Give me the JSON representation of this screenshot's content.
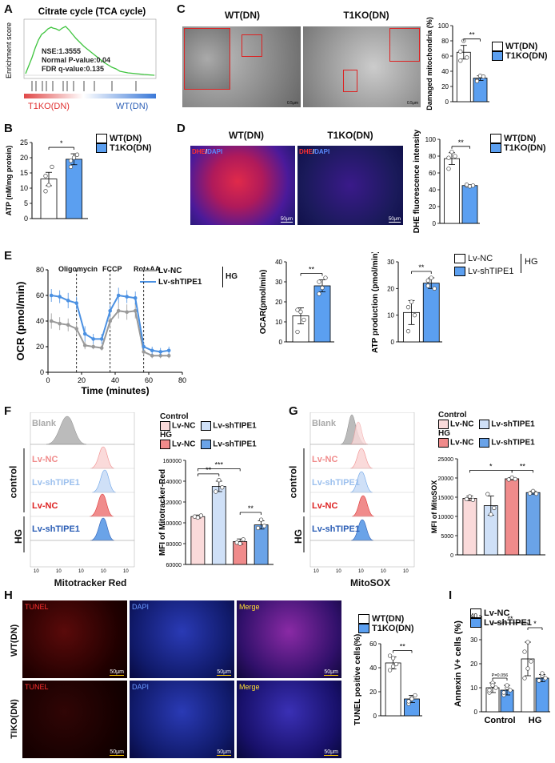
{
  "panel_letters": [
    "A",
    "B",
    "C",
    "D",
    "E",
    "F",
    "G",
    "H",
    "I"
  ],
  "A": {
    "title": "Citrate cycle (TCA cycle)",
    "ylabel": "Enrichment score",
    "stats": [
      "NSE:1.3555",
      "Normal P-value:0.04",
      "FDR q-value:0.135"
    ],
    "left_label": "T1KO(DN)",
    "right_label": "WT(DN)"
  },
  "legend_wt_t1ko": {
    "wt": "WT(DN)",
    "ko": "T1KO(DN)"
  },
  "legend_lv": {
    "nc": "Lv-NC",
    "sh": "Lv-shTIPE1",
    "hg": "HG",
    "control": "Control"
  },
  "C": {
    "col_titles": [
      "WT(DN)",
      "T1KO(DN)"
    ],
    "scale": "0.5μm"
  },
  "D": {
    "col_titles": [
      "WT(DN)",
      "T1KO(DN)"
    ],
    "stain_red": "DHE",
    "stain_sep": "/",
    "stain_blue": "DAPI",
    "scale": "50μm"
  },
  "E": {
    "markers": [
      "Oligomycin",
      "FCCP",
      "Rot+AA"
    ]
  },
  "F": {
    "row_labels": [
      "Blank",
      "Lv-NC",
      "Lv-shTIPE1",
      "Lv-NC",
      "Lv-shTIPE1"
    ],
    "group_labels": [
      "control",
      "HG"
    ],
    "xlabel": "Mitotracker Red"
  },
  "G": {
    "row_labels": [
      "Blank",
      "Lv-NC",
      "Lv-shTIPE1",
      "Lv-NC",
      "Lv-shTIPE1"
    ],
    "group_labels": [
      "control",
      "HG"
    ],
    "xlabel": "MitoSOX"
  },
  "H": {
    "cols": [
      "TUNEL",
      "DAPI",
      "Merge"
    ],
    "rows": [
      "WT(DN)",
      "TIKO(DN)"
    ],
    "scale": "50μm"
  },
  "colors": {
    "wt": "#ffffff",
    "ko": "#5b9ff0",
    "nc_ctrl": "#fadada",
    "sh_ctrl": "#cfe0f7",
    "nc_hg": "#f08b8b",
    "sh_hg": "#6aa3e8",
    "line_nc": "#999999",
    "line_sh": "#4a90e2",
    "gsea": "#3ec43e"
  },
  "chart_data": [
    {
      "id": "B",
      "type": "bar",
      "categories": [
        "WT(DN)",
        "T1KO(DN)"
      ],
      "values": [
        13,
        19.5
      ],
      "errors": [
        2.2,
        1.8
      ],
      "ylabel": "ATP (nM/mg protein)",
      "ylim": [
        0,
        25
      ],
      "yticks": [
        0,
        5,
        10,
        15,
        20,
        25
      ],
      "points": [
        [
          9,
          11,
          17,
          14
        ],
        [
          17,
          20,
          21,
          19
        ]
      ],
      "sig": [
        {
          "a": 0,
          "b": 1,
          "label": "*"
        }
      ]
    },
    {
      "id": "C",
      "type": "bar",
      "categories": [
        "WT(DN)",
        "T1KO(DN)"
      ],
      "values": [
        65,
        31
      ],
      "errors": [
        9,
        3
      ],
      "ylabel": "Damaged mitochondria (%)",
      "ylim": [
        0,
        100
      ],
      "yticks": [
        0,
        20,
        40,
        60,
        80,
        100
      ],
      "points": [
        [
          54,
          80,
          58,
          66
        ],
        [
          28,
          34,
          33,
          27
        ]
      ],
      "sig": [
        {
          "a": 0,
          "b": 1,
          "label": "**"
        }
      ]
    },
    {
      "id": "D",
      "type": "bar",
      "categories": [
        "WT(DN)",
        "T1KO(DN)"
      ],
      "values": [
        77,
        45
      ],
      "errors": [
        7,
        1
      ],
      "ylabel": "DHE fluorescence intensity",
      "ylim": [
        0,
        100
      ],
      "yticks": [
        0,
        20,
        40,
        60,
        80,
        100
      ],
      "points": [
        [
          65,
          85,
          80,
          78
        ],
        [
          45,
          44,
          45,
          46
        ]
      ],
      "sig": [
        {
          "a": 0,
          "b": 1,
          "label": "**"
        }
      ]
    },
    {
      "id": "E1",
      "type": "line",
      "title": "",
      "xlabel": "Time (minutes)",
      "ylabel": "OCR (pmol/min)",
      "xlim": [
        0,
        80
      ],
      "ylim": [
        0,
        80
      ],
      "xticks": [
        0,
        20,
        40,
        60,
        80
      ],
      "yticks": [
        0,
        20,
        40,
        60,
        80
      ],
      "x": [
        2,
        7,
        12,
        17,
        22,
        27,
        32,
        37,
        42,
        47,
        52,
        57,
        62,
        67,
        72
      ],
      "series": [
        {
          "name": "Lv-NC",
          "values": [
            40,
            38,
            37,
            34,
            21,
            20,
            19,
            40,
            48,
            47,
            48,
            16,
            13,
            13,
            13
          ],
          "errors": [
            6,
            5,
            5,
            5,
            3,
            2,
            2,
            6,
            6,
            6,
            6,
            3,
            2,
            2,
            2
          ]
        },
        {
          "name": "Lv-shTIPE1",
          "values": [
            60,
            59,
            56,
            54,
            30,
            26,
            26,
            48,
            60,
            59,
            58,
            20,
            17,
            16,
            17
          ],
          "errors": [
            5,
            5,
            6,
            5,
            6,
            4,
            4,
            5,
            6,
            5,
            5,
            3,
            3,
            3,
            3
          ]
        }
      ]
    },
    {
      "id": "E2",
      "type": "bar",
      "categories": [
        "Lv-NC",
        "Lv-shTIPE1"
      ],
      "values": [
        13,
        28
      ],
      "errors": [
        4,
        3
      ],
      "ylabel": "OCAR(pmol/min)",
      "ylim": [
        0,
        40
      ],
      "yticks": [
        0,
        10,
        20,
        30,
        40
      ],
      "points": [
        [
          5,
          15,
          11,
          16
        ],
        [
          24,
          27,
          32,
          30
        ]
      ],
      "sig": [
        {
          "a": 0,
          "b": 1,
          "label": "**"
        }
      ]
    },
    {
      "id": "E3",
      "type": "bar",
      "categories": [
        "Lv-NC",
        "Lv-shTIPE1"
      ],
      "values": [
        11,
        22
      ],
      "errors": [
        4.5,
        2
      ],
      "ylabel": "ATP production (pmol/min)",
      "ylim": [
        0,
        30
      ],
      "yticks": [
        0,
        10,
        20,
        30
      ],
      "points": [
        [
          4,
          15,
          10,
          13
        ],
        [
          21,
          24,
          20,
          23
        ]
      ],
      "sig": [
        {
          "a": 0,
          "b": 1,
          "label": "**"
        }
      ]
    },
    {
      "id": "F",
      "type": "bar",
      "categories": [
        "Lv-NC",
        "Lv-shTIPE1",
        "Lv-NC",
        "Lv-shTIPE1"
      ],
      "groups": [
        "Control",
        "Control",
        "HG",
        "HG"
      ],
      "values": [
        106000,
        135000,
        82000,
        98000
      ],
      "errors": [
        1500,
        5000,
        2500,
        4000
      ],
      "ylabel": "MFI of Mitotracker-Red",
      "ylim": [
        60000,
        160000
      ],
      "yticks": [
        60000,
        80000,
        100000,
        120000,
        140000,
        160000
      ],
      "points": [
        [
          106000,
          105000,
          107000
        ],
        [
          130000,
          141000,
          134000
        ],
        [
          81000,
          80000,
          84000
        ],
        [
          95000,
          103000,
          97000
        ]
      ],
      "sig": [
        {
          "a": 0,
          "b": 1,
          "label": "**"
        },
        {
          "a": 0,
          "b": 2,
          "label": "***"
        },
        {
          "a": 2,
          "b": 3,
          "label": "**"
        }
      ]
    },
    {
      "id": "G",
      "type": "bar",
      "categories": [
        "Lv-NC",
        "Lv-shTIPE1",
        "Lv-NC",
        "Lv-shTIPE1"
      ],
      "groups": [
        "Control",
        "Control",
        "HG",
        "HG"
      ],
      "values": [
        14700,
        12800,
        19800,
        16200
      ],
      "errors": [
        600,
        2500,
        300,
        400
      ],
      "ylabel": "MFI of MitoSOX",
      "ylim": [
        0,
        25000
      ],
      "yticks": [
        0,
        5000,
        10000,
        15000,
        20000,
        25000
      ],
      "points": [
        [
          14500,
          15200,
          14300
        ],
        [
          15800,
          10500,
          12200
        ],
        [
          19600,
          20100,
          19700
        ],
        [
          16000,
          16600,
          15900
        ]
      ],
      "sig": [
        {
          "a": 0,
          "b": 2,
          "label": "*"
        },
        {
          "a": 2,
          "b": 3,
          "label": "**"
        }
      ]
    },
    {
      "id": "H",
      "type": "bar",
      "categories": [
        "WT(DN)",
        "T1KO(DN)"
      ],
      "values": [
        44,
        14
      ],
      "errors": [
        5,
        3
      ],
      "ylabel": "TUNEL positive cells(%)",
      "ylim": [
        0,
        60
      ],
      "yticks": [
        0,
        20,
        40,
        60
      ],
      "points": [
        [
          38,
          48,
          43,
          50,
          41
        ],
        [
          10,
          15,
          17,
          12,
          14
        ]
      ],
      "sig": [
        {
          "a": 0,
          "b": 1,
          "label": "**"
        }
      ]
    },
    {
      "id": "I",
      "type": "bar",
      "categories": [
        "Lv-NC",
        "Lv-shTIPE1",
        "Lv-NC",
        "Lv-shTIPE1"
      ],
      "groups": [
        "Control",
        "Control",
        "HG",
        "HG"
      ],
      "values": [
        10,
        9,
        22,
        14
      ],
      "errors": [
        2,
        2,
        7,
        1.5
      ],
      "ylabel": "Annexin V+ cells (%)",
      "ylim": [
        0,
        40
      ],
      "yticks": [
        0,
        10,
        20,
        30,
        40
      ],
      "points": [
        [
          8,
          12,
          10,
          9,
          11
        ],
        [
          7,
          10,
          9,
          8,
          11
        ],
        [
          14,
          29,
          21,
          25,
          18
        ],
        [
          13,
          15,
          14,
          13,
          16
        ]
      ],
      "sig": [
        {
          "a": 0,
          "b": 1,
          "label": "P=0.056"
        },
        {
          "a": 2,
          "b": 3,
          "label": "*"
        },
        {
          "a": 0,
          "b": 2,
          "label": "**"
        }
      ],
      "group_labels": [
        "Control",
        "HG"
      ]
    }
  ]
}
